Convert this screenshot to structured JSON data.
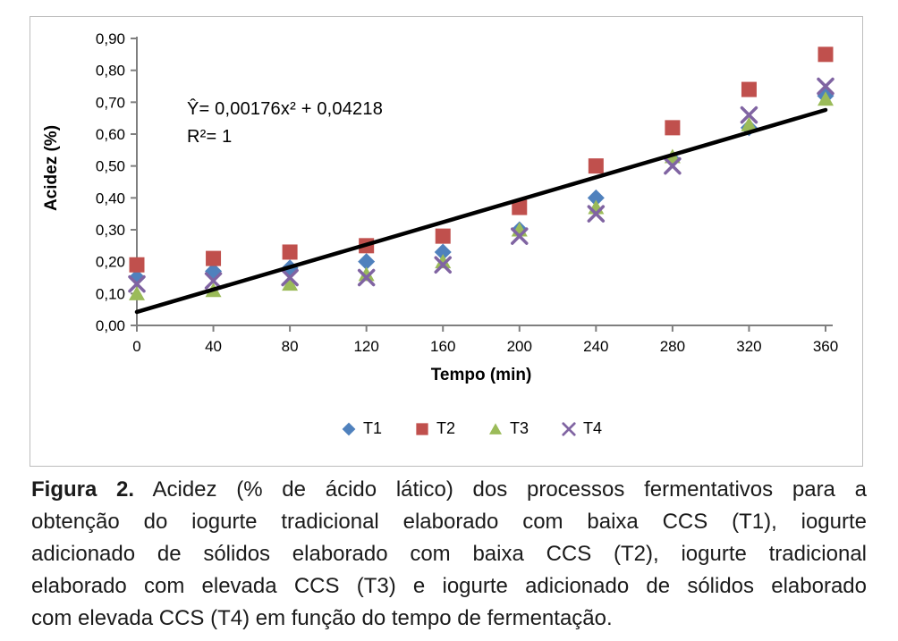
{
  "chart_data": {
    "type": "scatter",
    "xlabel": "Tempo (min)",
    "ylabel": "Acidez (%)",
    "xlim": [
      0,
      360
    ],
    "ylim": [
      0,
      0.9
    ],
    "grid": false,
    "axis_color": "#7f7f7f",
    "border_color": "#bdbdbd",
    "x_tick_values": [
      0,
      40,
      80,
      120,
      160,
      200,
      240,
      280,
      320,
      360
    ],
    "x_tick_labels": [
      "0",
      "40",
      "80",
      "120",
      "160",
      "200",
      "240",
      "280",
      "320",
      "360"
    ],
    "y_tick_values": [
      0,
      0.1,
      0.2,
      0.3,
      0.4,
      0.5,
      0.6,
      0.7,
      0.8,
      0.9
    ],
    "y_tick_labels": [
      "0,00",
      "0,10",
      "0,20",
      "0,30",
      "0,40",
      "0,50",
      "0,60",
      "0,70",
      "0,80",
      "0,90"
    ],
    "x": [
      0,
      40,
      80,
      120,
      160,
      200,
      240,
      280,
      320,
      360
    ],
    "series": [
      {
        "name": "T1",
        "marker": "diamond",
        "color": "#4F81BD",
        "values": [
          0.15,
          0.17,
          0.18,
          0.2,
          0.23,
          0.3,
          0.4,
          0.52,
          0.62,
          0.72
        ]
      },
      {
        "name": "T2",
        "marker": "square",
        "color": "#C0504D",
        "values": [
          0.19,
          0.21,
          0.23,
          0.25,
          0.28,
          0.37,
          0.5,
          0.62,
          0.74,
          0.85
        ]
      },
      {
        "name": "T3",
        "marker": "triangle",
        "color": "#9BBB59",
        "values": [
          0.1,
          0.11,
          0.13,
          0.16,
          0.2,
          0.3,
          0.37,
          0.53,
          0.63,
          0.71
        ]
      },
      {
        "name": "T4",
        "marker": "x",
        "color": "#8064A2",
        "values": [
          0.13,
          0.14,
          0.15,
          0.15,
          0.19,
          0.28,
          0.35,
          0.5,
          0.66,
          0.75
        ]
      }
    ],
    "trendline": {
      "slope": 0.00176,
      "intercept": 0.04218,
      "x_range": [
        0,
        360
      ],
      "color": "#000000",
      "width": 4.5
    },
    "annotation": {
      "equation": "Ŷ= 0,00176x² + 0,04218",
      "r_squared": "R²= 1"
    },
    "legend": {
      "position": "bottom",
      "entries": [
        "T1",
        "T2",
        "T3",
        "T4"
      ]
    }
  },
  "caption": {
    "bold_prefix": "Figura 2.",
    "lines": [
      " Acidez (% de ácido lático) dos processos fermentativos para a",
      "obtenção do iogurte tradicional elaborado com baixa CCS (T1), iogurte",
      "adicionado de sólidos elaborado com baixa CCS (T2), iogurte tradicional",
      "elaborado com elevada CCS (T3) e iogurte adicionado de sólidos elaborado",
      "com elevada CCS (T4) em função do tempo de fermentação."
    ]
  }
}
